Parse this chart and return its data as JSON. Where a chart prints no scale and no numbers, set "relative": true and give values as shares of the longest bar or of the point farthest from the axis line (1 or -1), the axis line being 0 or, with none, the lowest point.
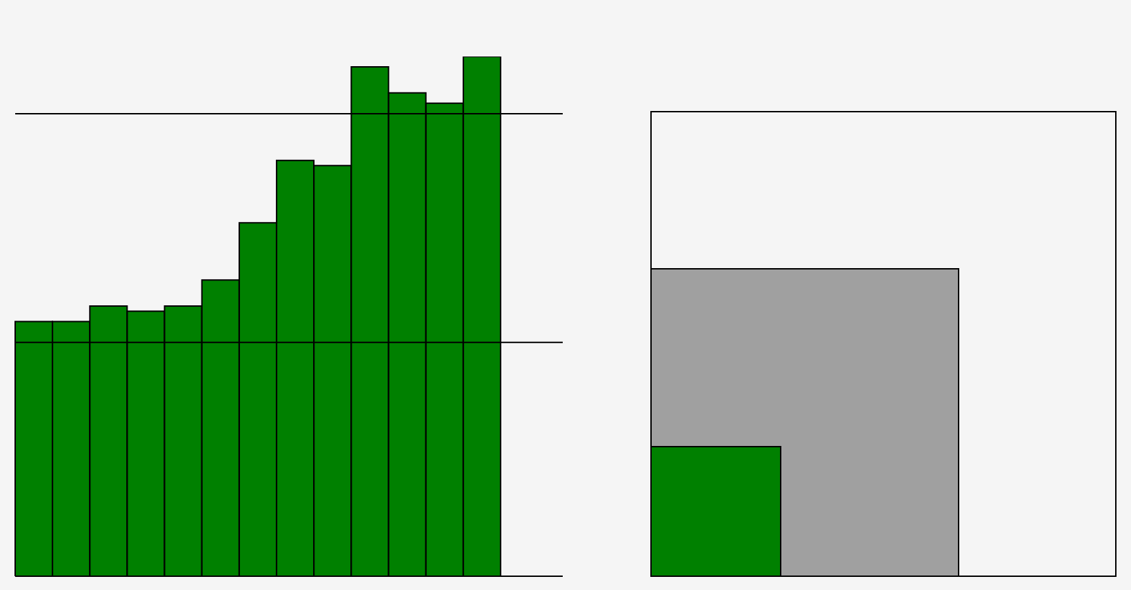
{
  "chart_data": {
    "type": "bar",
    "relative": true,
    "categories": [
      null,
      null,
      null,
      null,
      null,
      null,
      null,
      null,
      null,
      null,
      null,
      null,
      null
    ],
    "values": [
      0.49,
      0.49,
      0.52,
      0.51,
      0.52,
      0.57,
      0.68,
      0.8,
      0.79,
      0.98,
      0.93,
      0.91,
      1
    ],
    "color": "#008000",
    "ref_lines": [
      {
        "axis": "y",
        "value": 0.89,
        "color": "#000000"
      },
      {
        "axis": "y",
        "value": 0.45,
        "color": "#000000"
      }
    ]
  }
}
